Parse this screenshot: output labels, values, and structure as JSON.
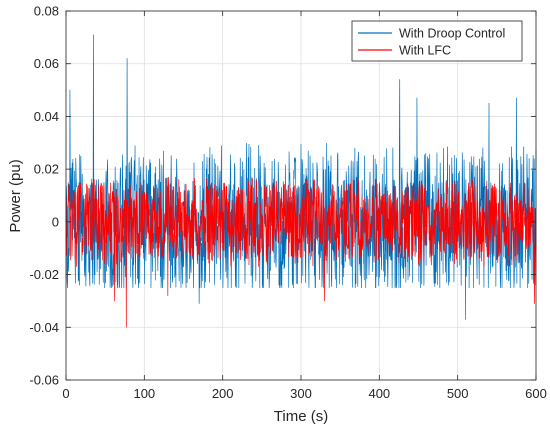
{
  "chart_data": {
    "type": "line",
    "xlabel": "Time (s)",
    "ylabel": "Power (pu)",
    "xlim": [
      0,
      600
    ],
    "ylim": [
      -0.06,
      0.08
    ],
    "x_ticks": [
      0,
      100,
      200,
      300,
      400,
      500,
      600
    ],
    "y_ticks": [
      -0.06,
      -0.04,
      -0.02,
      0,
      0.02,
      0.04,
      0.06,
      0.08
    ],
    "x_tick_labels": [
      "0",
      "100",
      "200",
      "300",
      "400",
      "500",
      "600"
    ],
    "y_tick_labels": [
      "-0.06",
      "-0.04",
      "-0.02",
      "0",
      "0.02",
      "0.04",
      "0.06",
      "0.08"
    ],
    "grid": true,
    "legend_position": "top-right",
    "series": [
      {
        "name": "With Droop Control",
        "color": "#0072BD",
        "style": "dense noise",
        "typical_range": [
          -0.025,
          0.03
        ],
        "peaks": [
          {
            "x": 35,
            "y": 0.071
          },
          {
            "x": 78,
            "y": 0.062
          },
          {
            "x": 5,
            "y": 0.05
          },
          {
            "x": 426,
            "y": 0.054
          },
          {
            "x": 448,
            "y": 0.047
          },
          {
            "x": 575,
            "y": 0.047
          },
          {
            "x": 540,
            "y": 0.045
          },
          {
            "x": 510,
            "y": -0.037
          },
          {
            "x": 170,
            "y": -0.031
          }
        ]
      },
      {
        "name": "With LFC",
        "color": "#FF0000",
        "style": "dense noise",
        "typical_range": [
          -0.017,
          0.017
        ],
        "peaks": [
          {
            "x": 77,
            "y": -0.04
          },
          {
            "x": 62,
            "y": -0.03
          },
          {
            "x": 330,
            "y": -0.03
          },
          {
            "x": 130,
            "y": -0.028
          },
          {
            "x": 598,
            "y": -0.031
          }
        ]
      }
    ]
  }
}
